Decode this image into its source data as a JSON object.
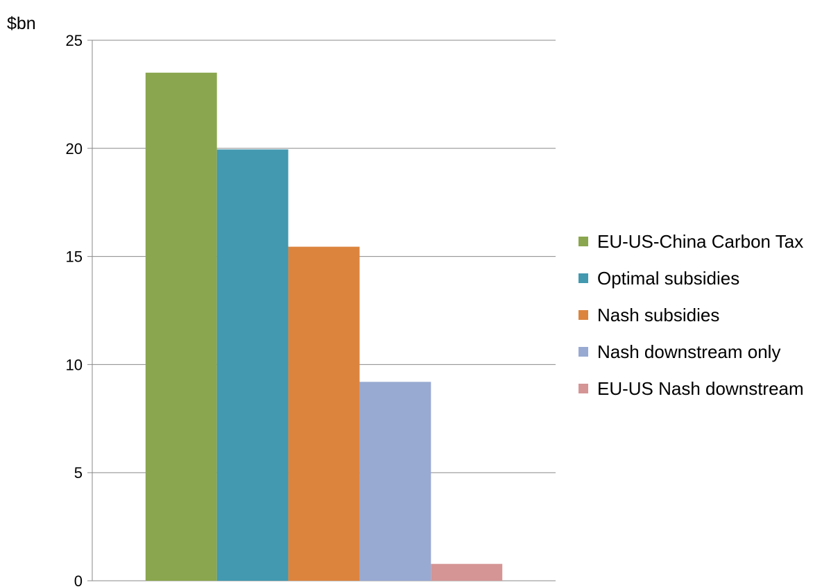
{
  "chart_data": {
    "type": "bar",
    "title": "",
    "xlabel": "",
    "ylabel": "$bn",
    "ylim": [
      0,
      25
    ],
    "yticks": [
      0,
      5,
      10,
      15,
      20,
      25
    ],
    "grid": true,
    "legend_position": "right",
    "series": [
      {
        "name": "EU-US-China Carbon Tax",
        "values": [
          23.5
        ],
        "color": "#8aa64e"
      },
      {
        "name": "Optimal subsidies",
        "values": [
          19.95
        ],
        "color": "#4299b0"
      },
      {
        "name": "Nash subsidies",
        "values": [
          15.45
        ],
        "color": "#dc843e"
      },
      {
        "name": "Nash downstream only",
        "values": [
          9.2
        ],
        "color": "#98aad2"
      },
      {
        "name": "EU-US Nash downstream",
        "values": [
          0.78
        ],
        "color": "#d59595"
      }
    ]
  }
}
